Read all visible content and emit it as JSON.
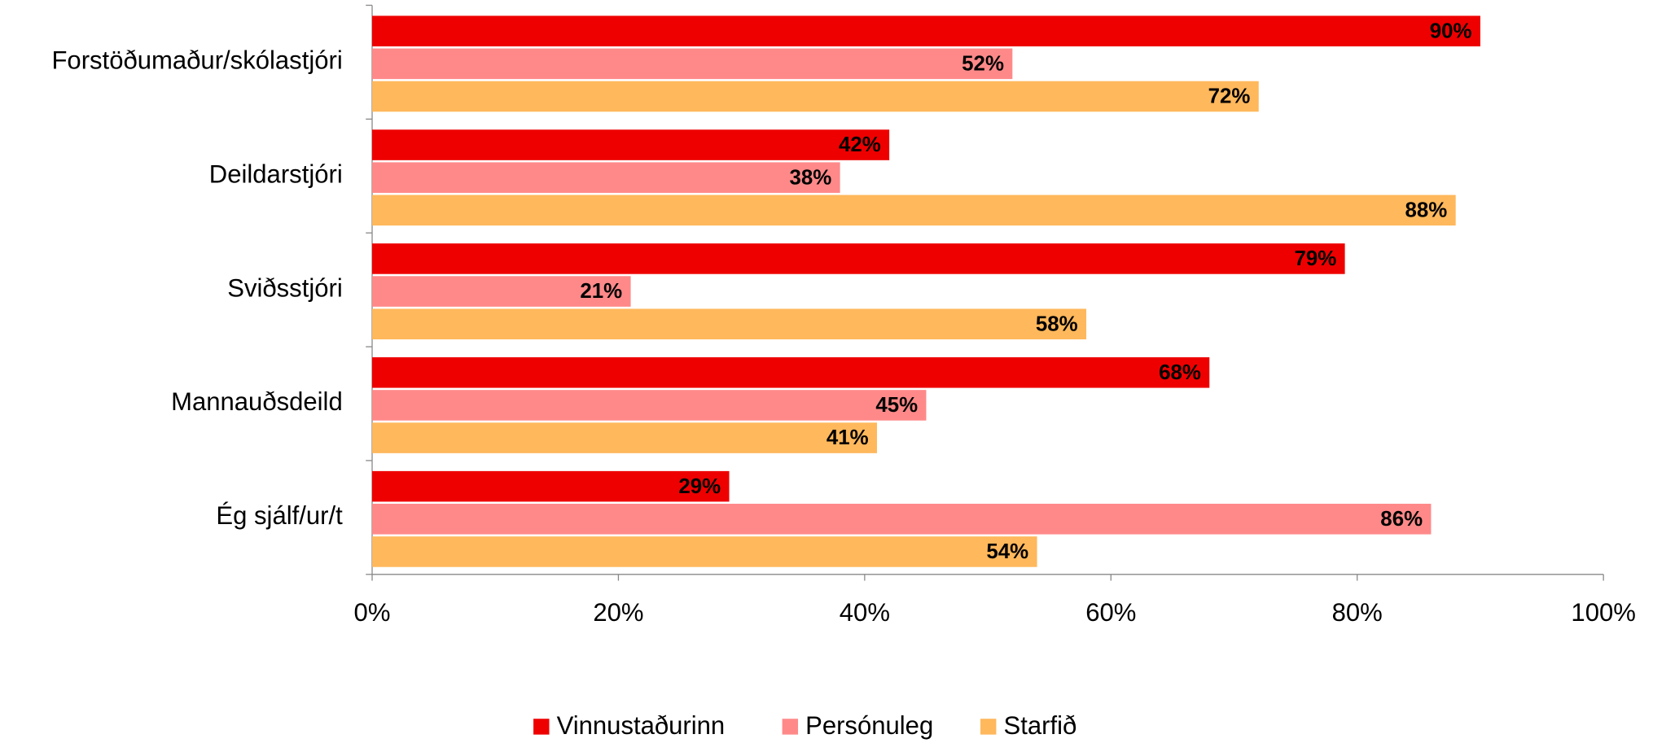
{
  "chart_data": {
    "type": "hbar",
    "categories": [
      "Forstöðumaður/skólastjóri",
      "Deildarstjóri",
      "Sviðsstjóri",
      "Mannauðsdeild",
      "Ég sjálf/ur/t"
    ],
    "series": [
      {
        "name": "Vinnustaðurinn",
        "color": "#ee0000",
        "values": [
          90,
          42,
          79,
          68,
          29
        ],
        "value_labels": [
          "90%",
          "42%",
          "79%",
          "68%",
          "29%"
        ]
      },
      {
        "name": "Persónuleg",
        "color": "#ff8989",
        "values": [
          52,
          38,
          21,
          45,
          86
        ],
        "value_labels": [
          "52%",
          "38%",
          "21%",
          "45%",
          "86%"
        ]
      },
      {
        "name": "Starfið",
        "color": "#ffb85c",
        "values": [
          72,
          88,
          58,
          41,
          54
        ],
        "value_labels": [
          "72%",
          "88%",
          "58%",
          "41%",
          "54%"
        ]
      }
    ],
    "xlim": [
      0,
      100
    ],
    "xticks": [
      {
        "value": 0,
        "label": "0%"
      },
      {
        "value": 20,
        "label": "20%"
      },
      {
        "value": 40,
        "label": "40%"
      },
      {
        "value": 60,
        "label": "60%"
      },
      {
        "value": 80,
        "label": "80%"
      },
      {
        "value": 100,
        "label": "100%"
      }
    ],
    "legend": "bottom"
  }
}
